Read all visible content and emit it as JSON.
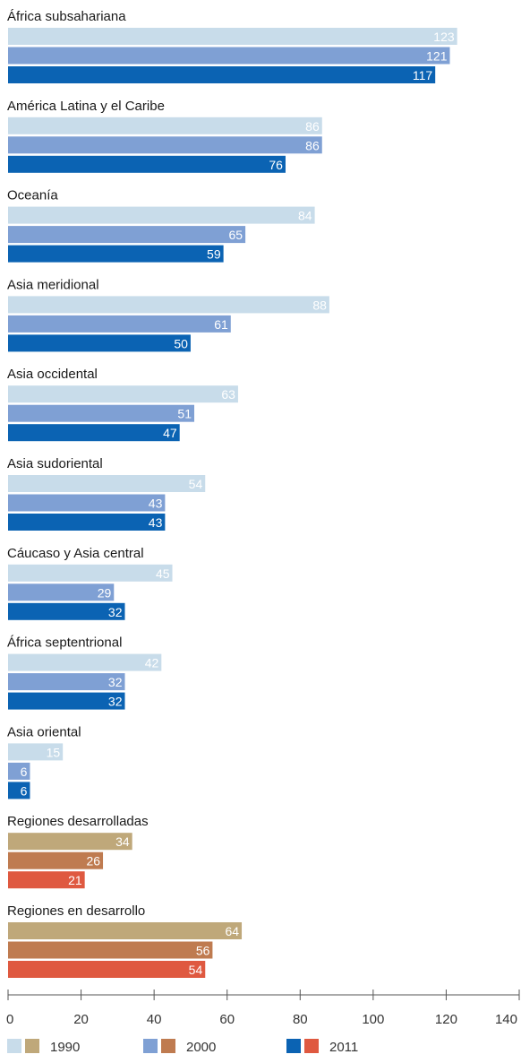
{
  "chart_data": {
    "type": "bar",
    "orientation": "horizontal",
    "grouped": true,
    "xlim": [
      0,
      140
    ],
    "xticks": [
      0,
      20,
      40,
      60,
      80,
      100,
      120,
      140
    ],
    "series": [
      {
        "name": "1990",
        "color": "#c8dcea",
        "color_alt": "#bfa87a"
      },
      {
        "name": "2000",
        "color": "#7fa0d4",
        "color_alt": "#bf7b50"
      },
      {
        "name": "2011",
        "color": "#0b63b3",
        "color_alt": "#df5940"
      }
    ],
    "categories": [
      {
        "label": "África subsahariana",
        "values": [
          123,
          121,
          117
        ],
        "palette": "primary"
      },
      {
        "label": "América Latina y el Caribe",
        "values": [
          86,
          86,
          76
        ],
        "palette": "primary"
      },
      {
        "label": "Oceanía",
        "values": [
          84,
          65,
          59
        ],
        "palette": "primary"
      },
      {
        "label": "Asia meridional",
        "values": [
          88,
          61,
          50
        ],
        "palette": "primary"
      },
      {
        "label": "Asia occidental",
        "values": [
          63,
          51,
          47
        ],
        "palette": "primary"
      },
      {
        "label": "Asia sudoriental",
        "values": [
          54,
          43,
          43
        ],
        "palette": "primary"
      },
      {
        "label": "Cáucaso y Asia central",
        "values": [
          45,
          29,
          32
        ],
        "palette": "primary"
      },
      {
        "label": "África septentrional",
        "values": [
          42,
          32,
          32
        ],
        "palette": "primary"
      },
      {
        "label": "Asia oriental",
        "values": [
          15,
          6,
          6
        ],
        "palette": "primary"
      },
      {
        "label": "Regiones desarrolladas",
        "values": [
          34,
          26,
          21
        ],
        "palette": "alt"
      },
      {
        "label": "Regiones en desarrollo",
        "values": [
          64,
          56,
          54
        ],
        "palette": "alt"
      }
    ],
    "legend_position": "bottom",
    "grid": false
  }
}
